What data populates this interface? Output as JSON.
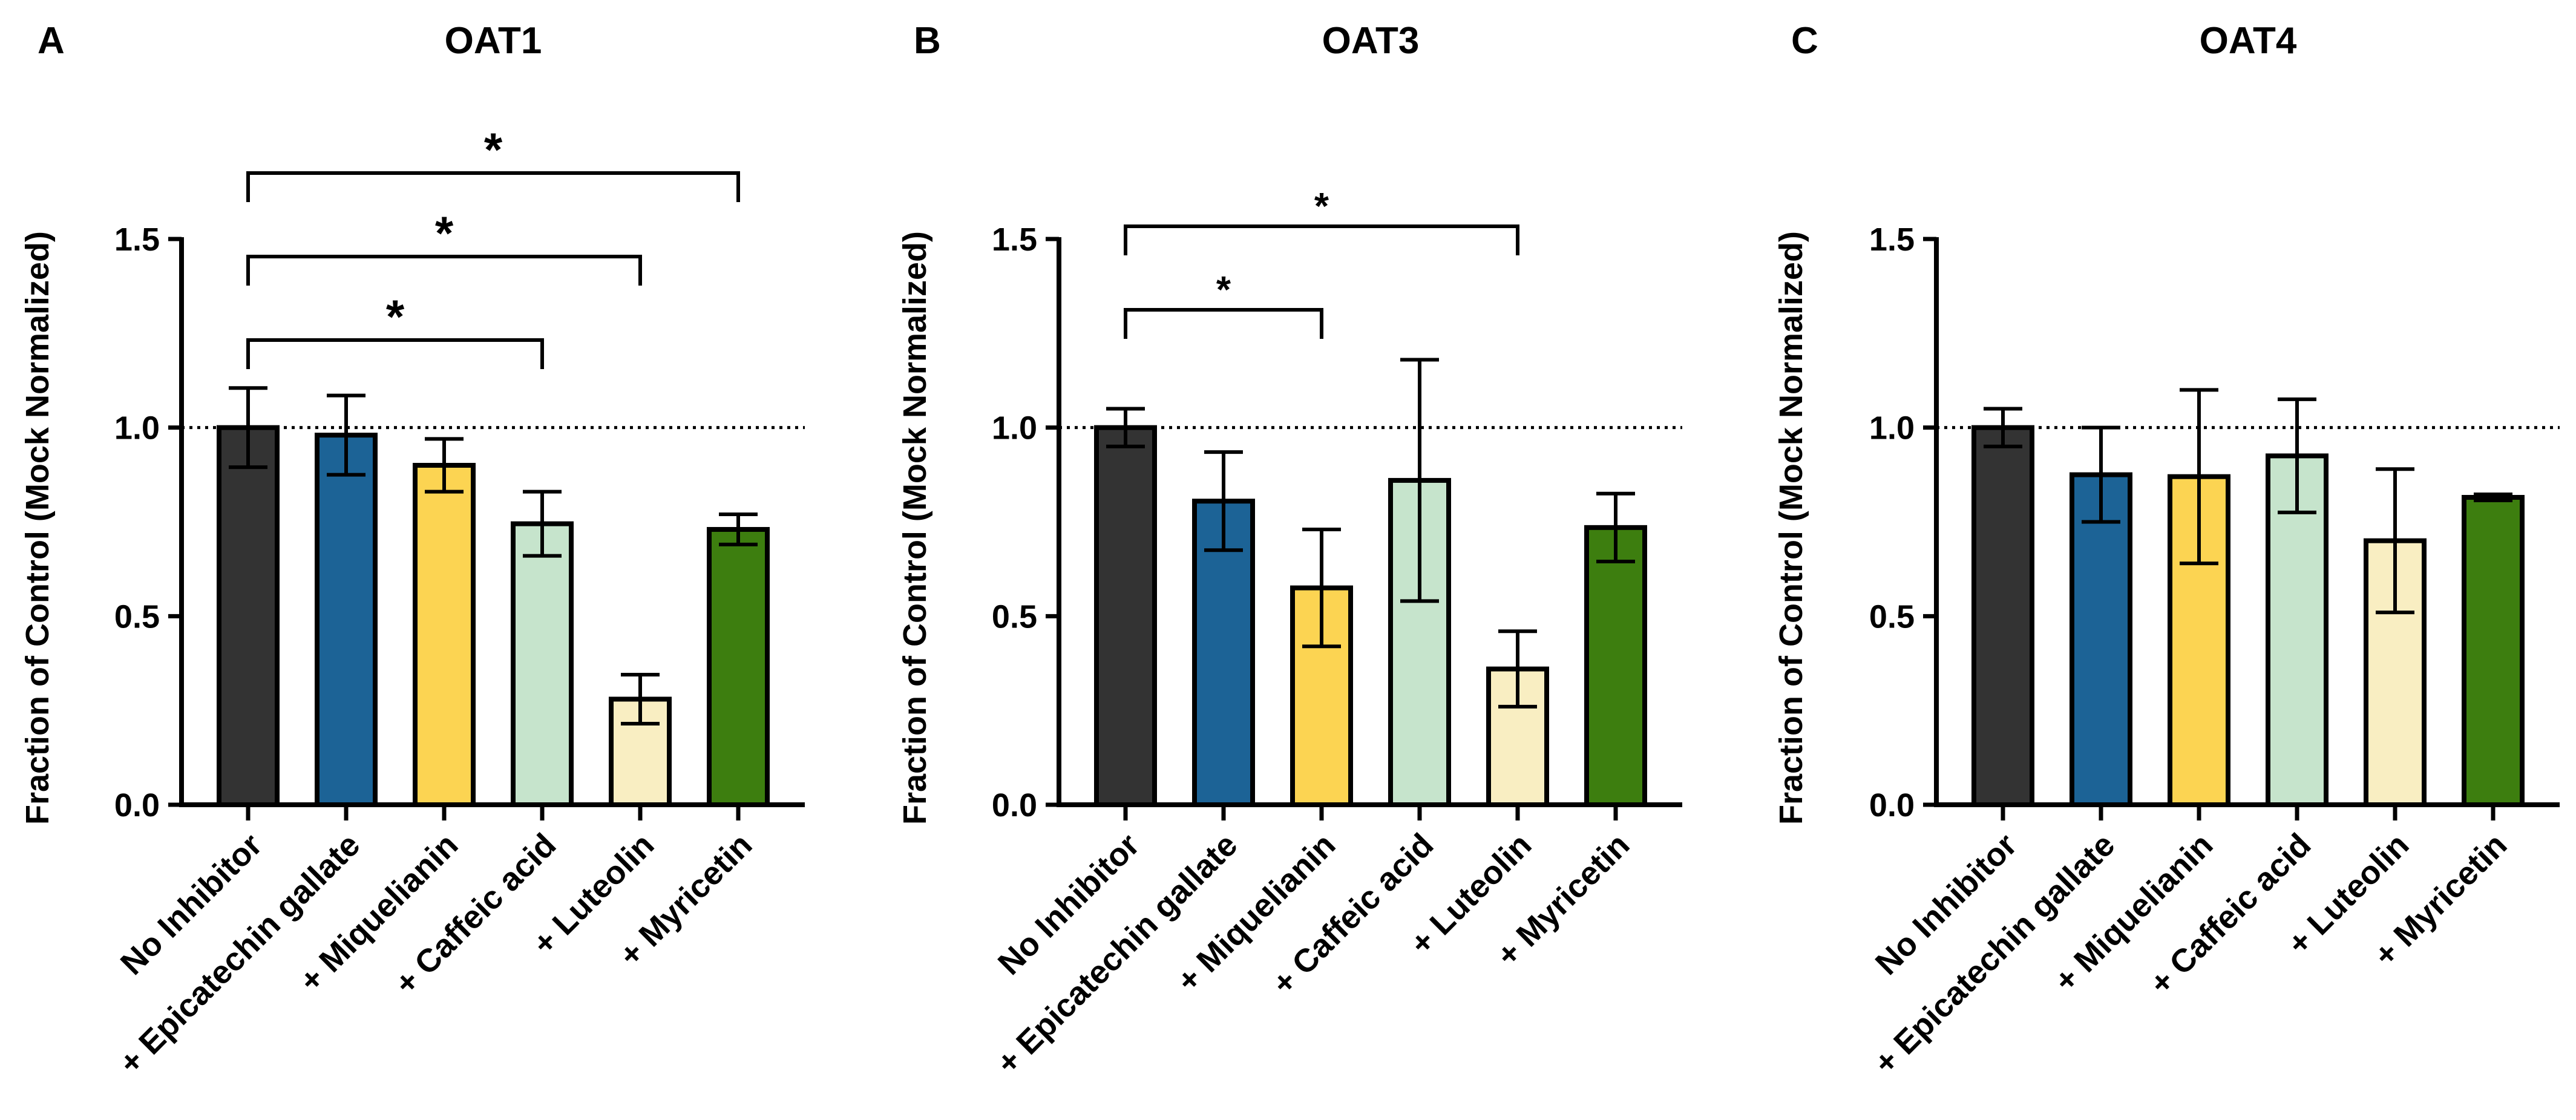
{
  "figure": {
    "description_free": true
  },
  "colors": {
    "No Inhibitor": "#333333",
    "+ Epicatechin gallate": "#1c6396",
    "+ Miquelianin": "#fcd452",
    "+ Caffeic acid": "#c6e4cc",
    "+ Luteolin": "#f9eec2",
    "+ Myricetin": "#3d7e0f",
    "outline": "#000000",
    "reference_line": "#000000"
  },
  "chart_data": [
    {
      "type": "bar",
      "panel_letter": "A",
      "title": "OAT1",
      "ylabel": "Fraction of Control (Mock Normalized)",
      "xlabel": "",
      "ylim": [
        0,
        1.5
      ],
      "yticks": [
        "0.0",
        "0.5",
        "1.0",
        "1.5"
      ],
      "ytick_values": [
        0,
        0.5,
        1.0,
        1.5
      ],
      "reference_line": 1.0,
      "categories": [
        "No Inhibitor",
        "+ Epicatechin gallate",
        "+ Miquelianin",
        "+ Caffeic acid",
        "+ Luteolin",
        "+ Myricetin"
      ],
      "values": [
        1.0,
        0.98,
        0.9,
        0.745,
        0.28,
        0.73
      ],
      "errors": [
        0.105,
        0.105,
        0.07,
        0.085,
        0.065,
        0.04
      ],
      "significance": [
        {
          "from": 0,
          "to": 3,
          "label": "*"
        },
        {
          "from": 0,
          "to": 4,
          "label": "*"
        },
        {
          "from": 0,
          "to": 5,
          "label": "*"
        }
      ]
    },
    {
      "type": "bar",
      "panel_letter": "B",
      "title": "OAT3",
      "ylabel": "Fraction of Control (Mock Normalized)",
      "xlabel": "",
      "ylim": [
        0,
        1.5
      ],
      "yticks": [
        "0.0",
        "0.5",
        "1.0",
        "1.5"
      ],
      "ytick_values": [
        0,
        0.5,
        1.0,
        1.5
      ],
      "reference_line": 1.0,
      "categories": [
        "No Inhibitor",
        "+ Epicatechin gallate",
        "+ Miquelianin",
        "+ Caffeic acid",
        "+ Luteolin",
        "+ Myricetin"
      ],
      "values": [
        1.0,
        0.805,
        0.575,
        0.86,
        0.36,
        0.735
      ],
      "errors": [
        0.05,
        0.13,
        0.155,
        0.32,
        0.1,
        0.09
      ],
      "significance": [
        {
          "from": 0,
          "to": 2,
          "label": "*"
        },
        {
          "from": 0,
          "to": 4,
          "label": "*"
        }
      ]
    },
    {
      "type": "bar",
      "panel_letter": "C",
      "title": "OAT4",
      "ylabel": "Fraction of Control (Mock Normalized)",
      "xlabel": "",
      "ylim": [
        0,
        1.5
      ],
      "yticks": [
        "0.0",
        "0.5",
        "1.0",
        "1.5"
      ],
      "ytick_values": [
        0,
        0.5,
        1.0,
        1.5
      ],
      "reference_line": 1.0,
      "categories": [
        "No Inhibitor",
        "+ Epicatechin gallate",
        "+ Miquelianin",
        "+ Caffeic acid",
        "+ Luteolin",
        "+ Myricetin"
      ],
      "values": [
        1.0,
        0.875,
        0.87,
        0.925,
        0.7,
        0.815
      ],
      "errors": [
        0.05,
        0.125,
        0.23,
        0.15,
        0.19,
        0.008
      ],
      "significance": []
    }
  ]
}
